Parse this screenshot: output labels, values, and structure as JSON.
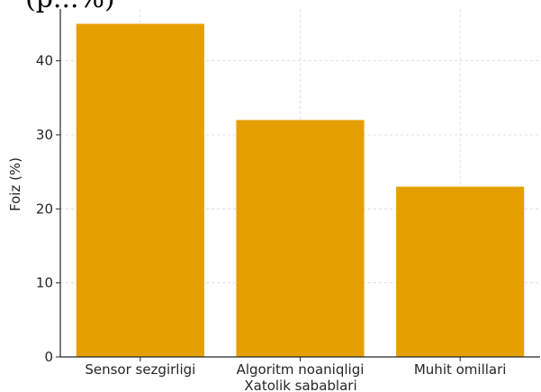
{
  "chart_data": {
    "type": "bar",
    "title": "(p...%)",
    "categories": [
      "Sensor sezgirligi",
      "Algoritm noaniqligi",
      "Muhit omillari"
    ],
    "values": [
      45,
      32,
      23
    ],
    "xlabel": "Xatolik sabablari",
    "ylabel": "Foiz (%)",
    "ylim": [
      0,
      47
    ],
    "yticks": [
      0,
      10,
      20,
      30,
      40
    ],
    "grid": true,
    "bar_color": "#E69F00"
  }
}
